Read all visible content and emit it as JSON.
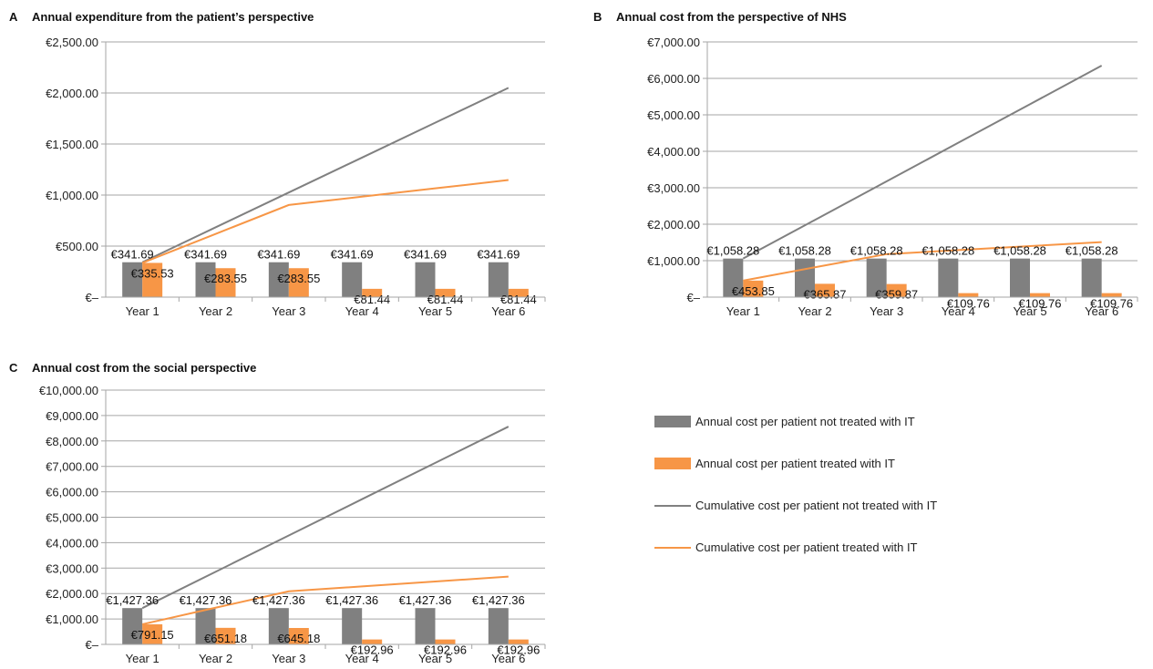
{
  "colors": {
    "not_treated": "#808080",
    "treated": "#f79646",
    "grid": "#a6a6a6"
  },
  "legend": [
    {
      "label": "Annual cost per patient not treated with IT",
      "kind": "bar",
      "series": "not_treated"
    },
    {
      "label": "Annual cost per patient treated with IT",
      "kind": "bar",
      "series": "treated"
    },
    {
      "label": "Cumulative cost per patient not treated with IT",
      "kind": "line",
      "series": "not_treated"
    },
    {
      "label": "Cumulative cost per patient treated with IT",
      "kind": "line",
      "series": "treated"
    }
  ],
  "chart_data": [
    {
      "panel": "A",
      "title": "Annual expenditure from the patient’s perspective",
      "type": "bar",
      "categories": [
        "Year 1",
        "Year 2",
        "Year 3",
        "Year 4",
        "Year 5",
        "Year 6"
      ],
      "ylim": [
        0,
        2500
      ],
      "yticks": [
        0,
        500,
        1000,
        1500,
        2000,
        2500
      ],
      "ytick_labels": [
        "€–",
        "€500.00",
        "€1,000.00",
        "€1,500.00",
        "€2,000.00",
        "€2,500.00"
      ],
      "grid": true,
      "series": [
        {
          "name": "Annual cost per patient not treated with IT",
          "kind": "bar",
          "color": "#808080",
          "values": [
            341.69,
            341.69,
            341.69,
            341.69,
            341.69,
            341.69
          ],
          "labels": [
            "€341.69",
            "€341.69",
            "€341.69",
            "€341.69",
            "€341.69",
            "€341.69"
          ]
        },
        {
          "name": "Annual cost per patient treated with IT",
          "kind": "bar",
          "color": "#f79646",
          "values": [
            335.53,
            283.55,
            283.55,
            81.44,
            81.44,
            81.44
          ],
          "labels": [
            "€335.53",
            "€283.55",
            "€283.55",
            "€81.44",
            "€81.44",
            "€81.44"
          ]
        },
        {
          "name": "Cumulative cost per patient not treated with IT",
          "kind": "line",
          "color": "#808080",
          "values": [
            341.69,
            683.38,
            1025.07,
            1366.76,
            1708.45,
            2050.14
          ]
        },
        {
          "name": "Cumulative cost per patient treated with IT",
          "kind": "line",
          "color": "#f79646",
          "values": [
            335.53,
            619.08,
            902.63,
            984.07,
            1065.51,
            1146.95
          ]
        }
      ]
    },
    {
      "panel": "B",
      "title": "Annual cost from the perspective of NHS",
      "type": "bar",
      "categories": [
        "Year 1",
        "Year 2",
        "Year 3",
        "Year 4",
        "Year 5",
        "Year 6"
      ],
      "ylim": [
        0,
        7000
      ],
      "yticks": [
        0,
        1000,
        2000,
        3000,
        4000,
        5000,
        6000,
        7000
      ],
      "ytick_labels": [
        "€–",
        "€1,000.00",
        "€2,000.00",
        "€3,000.00",
        "€4,000.00",
        "€5,000.00",
        "€6,000.00",
        "€7,000.00"
      ],
      "grid": true,
      "series": [
        {
          "name": "Annual cost per patient not treated with IT",
          "kind": "bar",
          "color": "#808080",
          "values": [
            1058.28,
            1058.28,
            1058.28,
            1058.28,
            1058.28,
            1058.28
          ],
          "labels": [
            "€1,058.28",
            "€1,058.28",
            "€1,058.28",
            "€1,058.28",
            "€1,058.28",
            "€1,058.28"
          ]
        },
        {
          "name": "Annual cost per patient treated with IT",
          "kind": "bar",
          "color": "#f79646",
          "values": [
            453.85,
            365.87,
            359.87,
            109.76,
            109.76,
            109.76
          ],
          "labels": [
            "€453.85",
            "€365.87",
            "€359.87",
            "€109.76",
            "€109.76",
            "€109.76"
          ]
        },
        {
          "name": "Cumulative cost per patient not treated with IT",
          "kind": "line",
          "color": "#808080",
          "values": [
            1058.28,
            2116.56,
            3174.84,
            4233.12,
            5291.4,
            6349.68
          ]
        },
        {
          "name": "Cumulative cost per patient treated with IT",
          "kind": "line",
          "color": "#f79646",
          "values": [
            453.85,
            819.72,
            1179.59,
            1289.35,
            1399.11,
            1508.87
          ]
        }
      ]
    },
    {
      "panel": "C",
      "title": "Annual cost from the social perspective",
      "type": "bar",
      "categories": [
        "Year 1",
        "Year 2",
        "Year 3",
        "Year 4",
        "Year 5",
        "Year 6"
      ],
      "ylim": [
        0,
        10000
      ],
      "yticks": [
        0,
        1000,
        2000,
        3000,
        4000,
        5000,
        6000,
        7000,
        8000,
        9000,
        10000
      ],
      "ytick_labels": [
        "€–",
        "€1,000.00",
        "€2,000.00",
        "€3,000.00",
        "€4,000.00",
        "€5,000.00",
        "€6,000.00",
        "€7,000.00",
        "€8,000.00",
        "€9,000.00",
        "€10,000.00"
      ],
      "grid": true,
      "series": [
        {
          "name": "Annual cost per patient not treated with IT",
          "kind": "bar",
          "color": "#808080",
          "values": [
            1427.36,
            1427.36,
            1427.36,
            1427.36,
            1427.36,
            1427.36
          ],
          "labels": [
            "€1,427.36",
            "€1,427.36",
            "€1,427.36",
            "€1,427.36",
            "€1,427.36",
            "€1,427.36"
          ]
        },
        {
          "name": "Annual cost per patient treated with IT",
          "kind": "bar",
          "color": "#f79646",
          "values": [
            791.15,
            651.18,
            645.18,
            192.96,
            192.96,
            192.96
          ],
          "labels": [
            "€791.15",
            "€651.18",
            "€645.18",
            "€192.96",
            "€192.96",
            "€192.96"
          ]
        },
        {
          "name": "Cumulative cost per patient not treated with IT",
          "kind": "line",
          "color": "#808080",
          "values": [
            1427.36,
            2854.72,
            4282.08,
            5709.44,
            7136.8,
            8564.16
          ]
        },
        {
          "name": "Cumulative cost per patient treated with IT",
          "kind": "line",
          "color": "#f79646",
          "values": [
            791.15,
            1442.33,
            2087.51,
            2280.47,
            2473.43,
            2666.39
          ]
        }
      ]
    }
  ]
}
